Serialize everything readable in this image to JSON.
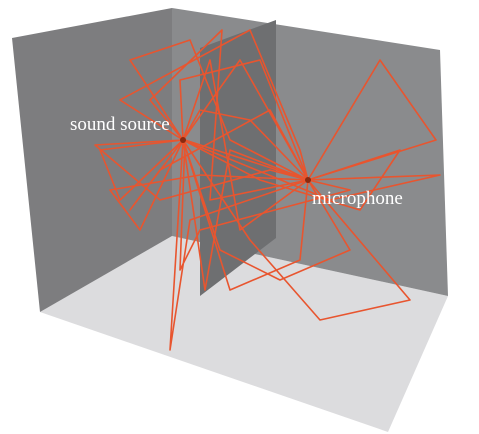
{
  "labels": {
    "source": "sound source",
    "microphone": "microphone"
  }
}
